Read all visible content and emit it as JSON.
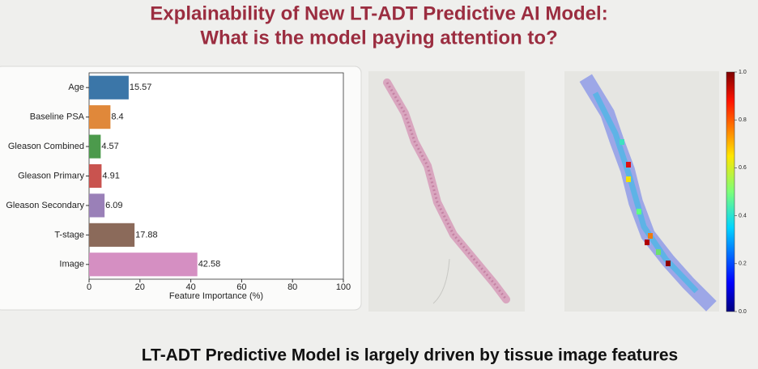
{
  "title": [
    "Explainability of New LT-ADT Predictive AI Model:",
    "What is the model paying attention to?"
  ],
  "chart_data": {
    "type": "bar",
    "orientation": "horizontal",
    "categories": [
      "Age",
      "Baseline PSA",
      "Gleason Combined",
      "Gleason Primary",
      "Gleason Secondary",
      "T-stage",
      "Image"
    ],
    "values": [
      15.57,
      8.4,
      4.57,
      4.91,
      6.09,
      17.88,
      42.58
    ],
    "colors": [
      "#3b76a8",
      "#e0883a",
      "#4c9a4c",
      "#c9534f",
      "#9a80b8",
      "#8b6a5a",
      "#d58fc2"
    ],
    "xlabel": "Feature Importance (%)",
    "xlim": [
      0,
      100
    ],
    "xticks": [
      0,
      20,
      40,
      60,
      80,
      100
    ]
  },
  "colorbar": {
    "ylim": [
      0,
      1
    ],
    "yticks": [
      {
        "value": 0,
        "label": "0.0"
      },
      0.2,
      0.4,
      0.6,
      0.8,
      {
        "value": 1,
        "label": "1.0"
      }
    ]
  },
  "footer": "LT-ADT Predictive Model is largely driven by tissue image features"
}
